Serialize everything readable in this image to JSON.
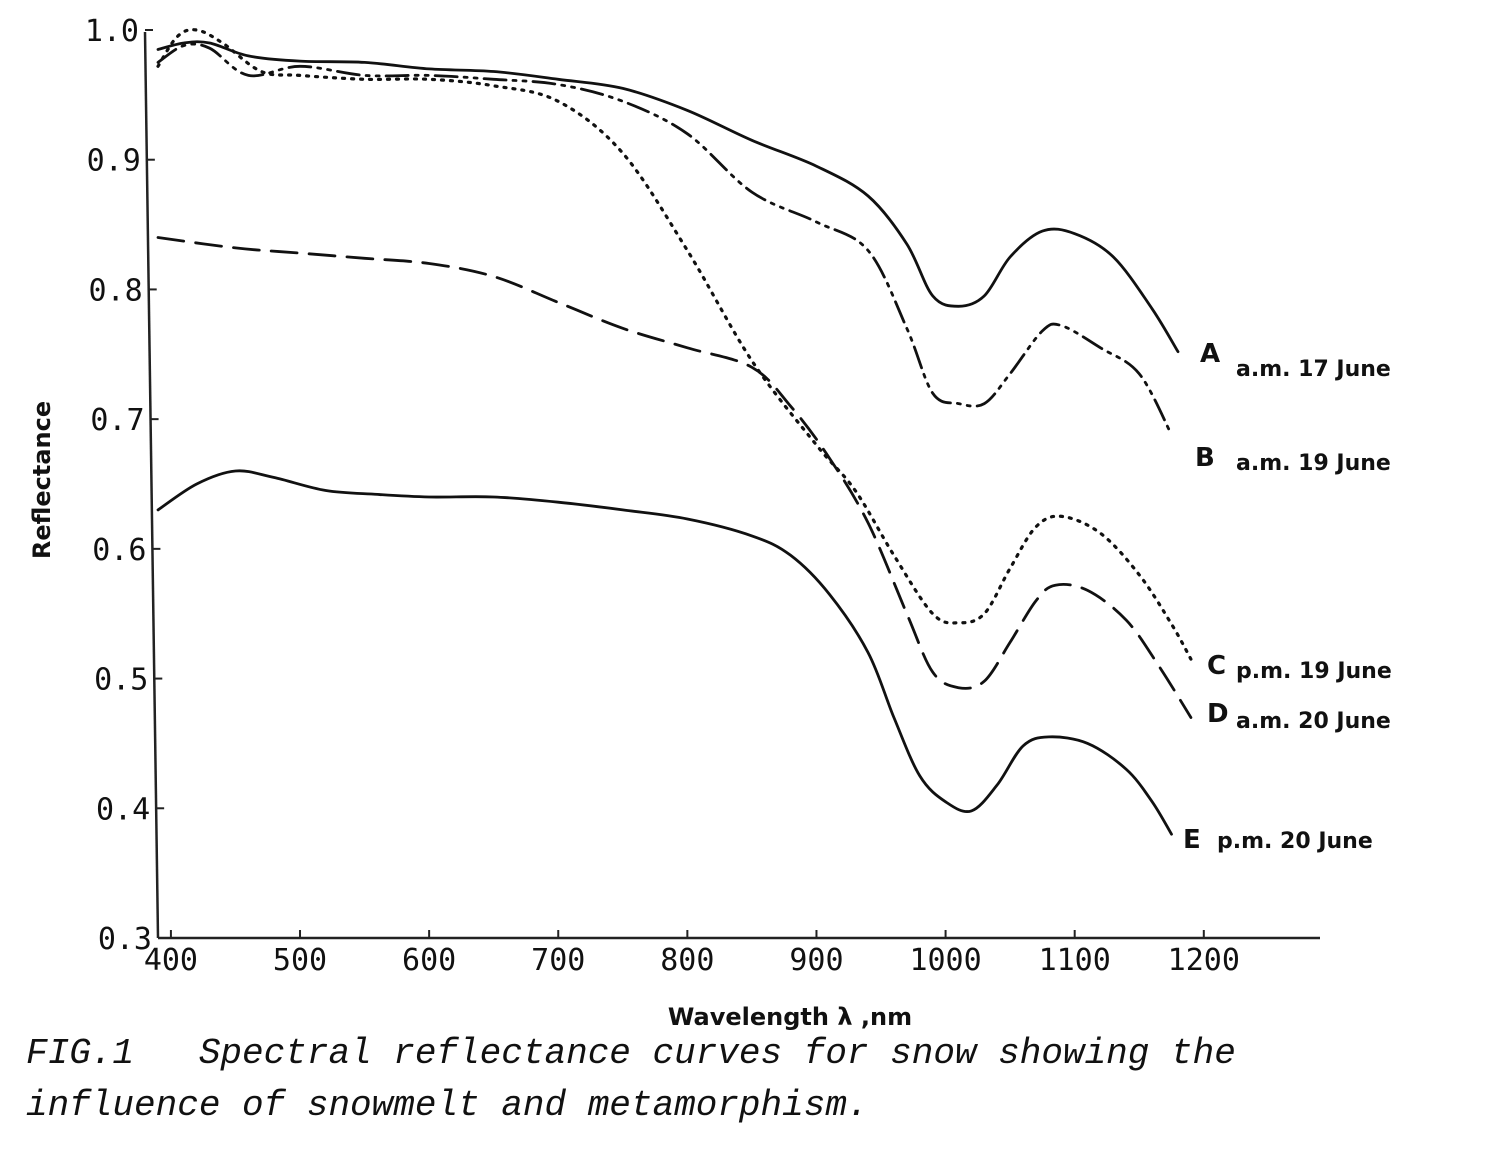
{
  "caption": "FIG.1   Spectral reflectance curves for snow showing the\ninfluence of snowmelt and metamorphism.",
  "chart_data": {
    "type": "line",
    "title": "",
    "xlabel": "Wavelength λ ,nm",
    "ylabel": "Reflectance",
    "xlim": [
      390,
      1290
    ],
    "ylim": [
      0.3,
      1.0
    ],
    "x_ticks": [
      400,
      500,
      600,
      700,
      800,
      900,
      1000,
      1100,
      1200
    ],
    "x_tick_labels": [
      "400",
      "500",
      "600",
      "700",
      "800",
      "900",
      "1000",
      "1100",
      "1200"
    ],
    "y_ticks": [
      0.3,
      0.4,
      0.5,
      0.6,
      0.7,
      0.8,
      0.9,
      1.0
    ],
    "y_tick_labels": [
      "0.3",
      "0.4",
      "0.5",
      "0.6",
      "0.7",
      "0.8",
      "0.9",
      "1.0"
    ],
    "grid": false,
    "legend": "curve labels at right end of each line",
    "series": [
      {
        "name": "A",
        "label": "a.m. 17 June",
        "style": "solid",
        "points": [
          [
            390,
            0.985
          ],
          [
            410,
            0.99
          ],
          [
            430,
            0.99
          ],
          [
            460,
            0.98
          ],
          [
            500,
            0.976
          ],
          [
            550,
            0.975
          ],
          [
            600,
            0.97
          ],
          [
            650,
            0.968
          ],
          [
            700,
            0.962
          ],
          [
            750,
            0.955
          ],
          [
            800,
            0.938
          ],
          [
            850,
            0.915
          ],
          [
            900,
            0.895
          ],
          [
            940,
            0.872
          ],
          [
            970,
            0.835
          ],
          [
            990,
            0.795
          ],
          [
            1010,
            0.787
          ],
          [
            1030,
            0.795
          ],
          [
            1050,
            0.825
          ],
          [
            1075,
            0.845
          ],
          [
            1100,
            0.843
          ],
          [
            1130,
            0.825
          ],
          [
            1160,
            0.785
          ],
          [
            1180,
            0.752
          ]
        ]
      },
      {
        "name": "B",
        "label": "a.m. 19 June",
        "style": "dash-dot-dot",
        "points": [
          [
            390,
            0.975
          ],
          [
            410,
            0.988
          ],
          [
            430,
            0.986
          ],
          [
            460,
            0.965
          ],
          [
            500,
            0.972
          ],
          [
            550,
            0.965
          ],
          [
            600,
            0.965
          ],
          [
            650,
            0.962
          ],
          [
            700,
            0.958
          ],
          [
            750,
            0.945
          ],
          [
            800,
            0.92
          ],
          [
            850,
            0.875
          ],
          [
            900,
            0.852
          ],
          [
            940,
            0.83
          ],
          [
            970,
            0.77
          ],
          [
            990,
            0.72
          ],
          [
            1010,
            0.712
          ],
          [
            1030,
            0.712
          ],
          [
            1050,
            0.735
          ],
          [
            1075,
            0.768
          ],
          [
            1090,
            0.772
          ],
          [
            1120,
            0.755
          ],
          [
            1150,
            0.735
          ],
          [
            1175,
            0.688
          ]
        ]
      },
      {
        "name": "C",
        "label": "p.m. 19 June",
        "style": "dotted",
        "points": [
          [
            390,
            0.972
          ],
          [
            405,
            0.995
          ],
          [
            420,
            1.0
          ],
          [
            440,
            0.99
          ],
          [
            470,
            0.968
          ],
          [
            500,
            0.965
          ],
          [
            550,
            0.962
          ],
          [
            600,
            0.962
          ],
          [
            650,
            0.957
          ],
          [
            700,
            0.945
          ],
          [
            750,
            0.905
          ],
          [
            800,
            0.83
          ],
          [
            850,
            0.745
          ],
          [
            900,
            0.68
          ],
          [
            930,
            0.645
          ],
          [
            960,
            0.595
          ],
          [
            990,
            0.55
          ],
          [
            1010,
            0.543
          ],
          [
            1030,
            0.55
          ],
          [
            1050,
            0.585
          ],
          [
            1070,
            0.617
          ],
          [
            1090,
            0.625
          ],
          [
            1120,
            0.612
          ],
          [
            1150,
            0.58
          ],
          [
            1175,
            0.542
          ],
          [
            1190,
            0.515
          ]
        ]
      },
      {
        "name": "D",
        "label": "a.m. 20 June",
        "style": "dashed",
        "points": [
          [
            390,
            0.84
          ],
          [
            450,
            0.832
          ],
          [
            500,
            0.828
          ],
          [
            550,
            0.824
          ],
          [
            600,
            0.82
          ],
          [
            650,
            0.81
          ],
          [
            700,
            0.79
          ],
          [
            750,
            0.77
          ],
          [
            800,
            0.755
          ],
          [
            850,
            0.74
          ],
          [
            880,
            0.71
          ],
          [
            910,
            0.67
          ],
          [
            940,
            0.62
          ],
          [
            970,
            0.55
          ],
          [
            990,
            0.505
          ],
          [
            1010,
            0.493
          ],
          [
            1030,
            0.498
          ],
          [
            1050,
            0.528
          ],
          [
            1070,
            0.56
          ],
          [
            1085,
            0.572
          ],
          [
            1110,
            0.568
          ],
          [
            1140,
            0.545
          ],
          [
            1165,
            0.51
          ],
          [
            1190,
            0.47
          ]
        ]
      },
      {
        "name": "E",
        "label": "p.m. 20 June",
        "style": "solid",
        "points": [
          [
            390,
            0.63
          ],
          [
            420,
            0.65
          ],
          [
            450,
            0.66
          ],
          [
            480,
            0.655
          ],
          [
            520,
            0.645
          ],
          [
            560,
            0.642
          ],
          [
            600,
            0.64
          ],
          [
            650,
            0.64
          ],
          [
            700,
            0.636
          ],
          [
            750,
            0.63
          ],
          [
            800,
            0.623
          ],
          [
            850,
            0.61
          ],
          [
            880,
            0.595
          ],
          [
            910,
            0.565
          ],
          [
            940,
            0.52
          ],
          [
            960,
            0.47
          ],
          [
            980,
            0.425
          ],
          [
            1000,
            0.405
          ],
          [
            1020,
            0.398
          ],
          [
            1040,
            0.418
          ],
          [
            1060,
            0.448
          ],
          [
            1080,
            0.455
          ],
          [
            1110,
            0.45
          ],
          [
            1140,
            0.43
          ],
          [
            1160,
            0.405
          ],
          [
            1175,
            0.38
          ]
        ]
      }
    ]
  }
}
